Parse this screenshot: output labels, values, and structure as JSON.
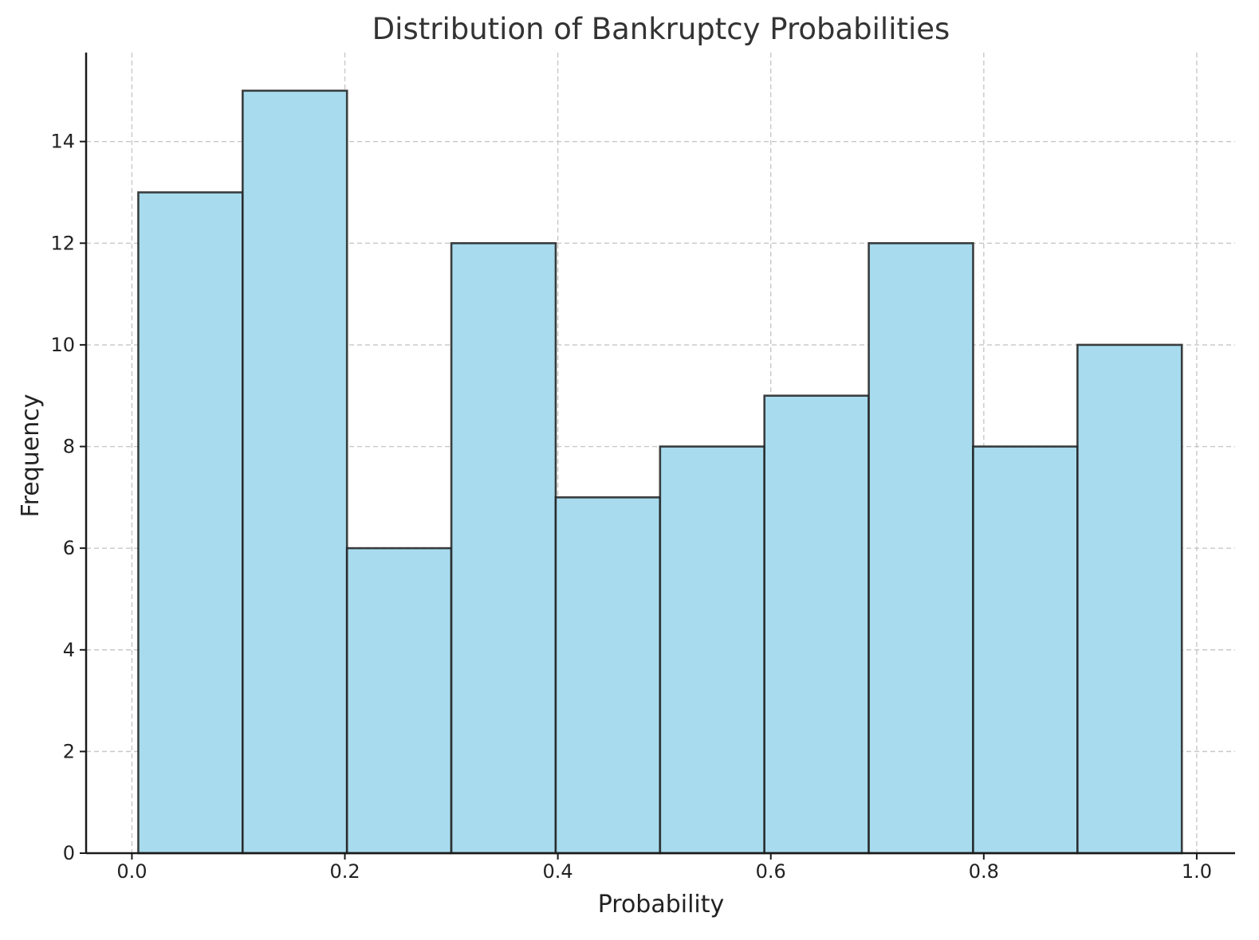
{
  "chart_data": {
    "type": "bar",
    "title": "Distribution of Bankruptcy Probabilities",
    "xlabel": "Probability",
    "ylabel": "Frequency",
    "bins": [
      {
        "start": 0.006,
        "end": 0.104,
        "value": 13
      },
      {
        "start": 0.104,
        "end": 0.202,
        "value": 15
      },
      {
        "start": 0.202,
        "end": 0.3,
        "value": 6
      },
      {
        "start": 0.3,
        "end": 0.398,
        "value": 12
      },
      {
        "start": 0.398,
        "end": 0.496,
        "value": 7
      },
      {
        "start": 0.496,
        "end": 0.594,
        "value": 8
      },
      {
        "start": 0.594,
        "end": 0.692,
        "value": 9
      },
      {
        "start": 0.692,
        "end": 0.79,
        "value": 12
      },
      {
        "start": 0.79,
        "end": 0.888,
        "value": 8
      },
      {
        "start": 0.888,
        "end": 0.986,
        "value": 10
      }
    ],
    "xlim": [
      -0.043,
      1.036
    ],
    "ylim": [
      0,
      15.75
    ],
    "xticks": [
      0.0,
      0.2,
      0.4,
      0.6,
      0.8,
      1.0
    ],
    "xtick_labels": [
      "0.0",
      "0.2",
      "0.4",
      "0.6",
      "0.8",
      "1.0"
    ],
    "yticks": [
      0,
      2,
      4,
      6,
      8,
      10,
      12,
      14
    ],
    "ytick_labels": [
      "0",
      "2",
      "4",
      "6",
      "8",
      "10",
      "12",
      "14"
    ],
    "grid": true,
    "bar_color": "#a8dbee",
    "edge_color": "#1f1f1f"
  }
}
